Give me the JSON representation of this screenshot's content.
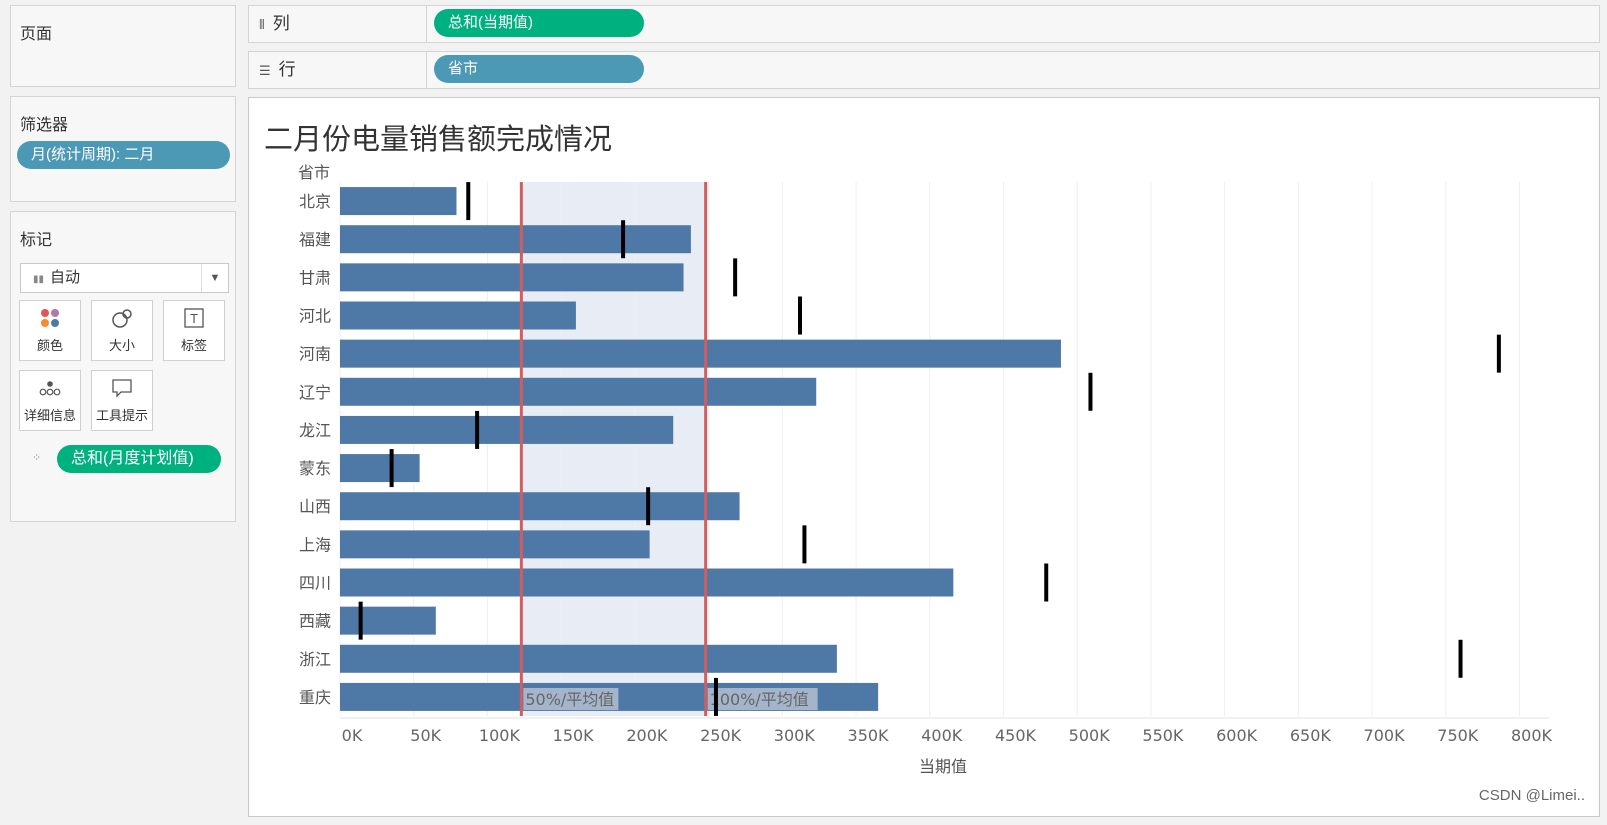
{
  "pages": {
    "title": "页面"
  },
  "filters": {
    "title": "筛选器",
    "pill": "月(统计周期): 二月"
  },
  "marks": {
    "title": "标记",
    "type": "自动",
    "buttons": [
      {
        "label": "颜色",
        "icon": "color-icon"
      },
      {
        "label": "大小",
        "icon": "size-icon"
      },
      {
        "label": "标签",
        "icon": "label-icon"
      },
      {
        "label": "详细信息",
        "icon": "detail-icon"
      },
      {
        "label": "工具提示",
        "icon": "tooltip-icon"
      }
    ],
    "detail_pill": "总和(月度计划值)"
  },
  "shelves": {
    "columns": {
      "label": "列",
      "pill": "总和(当期值)"
    },
    "rows": {
      "label": "行",
      "pill": "省市"
    }
  },
  "watermark": "CSDN @Limei..",
  "colors": {
    "bar": "#4e79a7",
    "band": "#e8ecf5",
    "refline": "#d15d5d",
    "target": "#000000",
    "green_pill": "#00b180",
    "blue_pill": "#4b99b5"
  },
  "chart_data": {
    "type": "bar",
    "orientation": "horizontal",
    "title": "二月份电量销售额完成情况",
    "row_header": "省市",
    "xlabel": "当期值",
    "xlim": [
      0,
      820000
    ],
    "grid": true,
    "x_ticks": [
      {
        "value": 0,
        "label": "0K"
      },
      {
        "value": 50000,
        "label": "50K"
      },
      {
        "value": 100000,
        "label": "100K"
      },
      {
        "value": 150000,
        "label": "150K"
      },
      {
        "value": 200000,
        "label": "200K"
      },
      {
        "value": 250000,
        "label": "250K"
      },
      {
        "value": 300000,
        "label": "300K"
      },
      {
        "value": 350000,
        "label": "350K"
      },
      {
        "value": 400000,
        "label": "400K"
      },
      {
        "value": 450000,
        "label": "450K"
      },
      {
        "value": 500000,
        "label": "500K"
      },
      {
        "value": 550000,
        "label": "550K"
      },
      {
        "value": 600000,
        "label": "600K"
      },
      {
        "value": 650000,
        "label": "650K"
      },
      {
        "value": 700000,
        "label": "700K"
      },
      {
        "value": 750000,
        "label": "750K"
      },
      {
        "value": 800000,
        "label": "800K"
      }
    ],
    "categories": [
      "北京",
      "福建",
      "甘肃",
      "河北",
      "河南",
      "辽宁",
      "龙江",
      "蒙东",
      "山西",
      "上海",
      "四川",
      "西藏",
      "浙江",
      "重庆"
    ],
    "series": [
      {
        "values": [
          79000,
          238000,
          233000,
          160000,
          489000,
          323000,
          226000,
          54000,
          271000,
          210000,
          416000,
          65000,
          337000,
          365000
        ]
      },
      {
        "values": [
          87000,
          192000,
          268000,
          312000,
          786000,
          509000,
          93000,
          35000,
          209000,
          315000,
          479000,
          14000,
          760000,
          255000
        ]
      }
    ],
    "reference_band": {
      "from": 123000,
      "to": 248000
    },
    "reference_lines": [
      {
        "value": 123000,
        "label": "50%/平均值"
      },
      {
        "value": 248000,
        "label": "100%/平均值"
      }
    ]
  }
}
